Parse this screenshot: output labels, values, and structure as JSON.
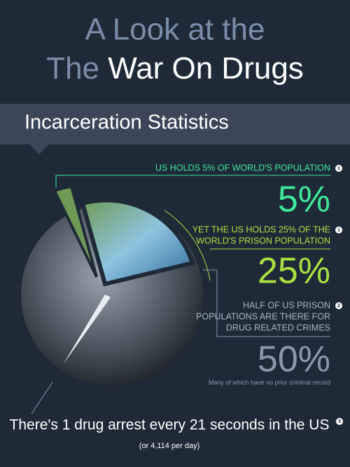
{
  "title": {
    "line1": "A Look at the",
    "line2_lead": "The",
    "line2_main": "War On Drugs"
  },
  "section": {
    "title": "Incarceration Statistics"
  },
  "stats": [
    {
      "label_lines": [
        "US HOLDS 5% OF WORLD'S POPULATION"
      ],
      "note": "1",
      "value": "5%"
    },
    {
      "label_lines": [
        "YET THE US HOLDS 25% OF THE",
        "WORLD'S PRISON POPULATION"
      ],
      "note": "1",
      "value": "25%"
    },
    {
      "label_lines": [
        "HALF OF US PRISON",
        "POPULATIONS ARE THERE FOR",
        "DRUG RELATED CRIMES"
      ],
      "note": "2",
      "value": "50%",
      "subtext": "Many of which have no prior criminal record"
    }
  ],
  "footer": {
    "text": "There's 1 drug arrest every 21 seconds in the US",
    "note": "3",
    "subtext": "(or 4,114 per day)"
  }
}
